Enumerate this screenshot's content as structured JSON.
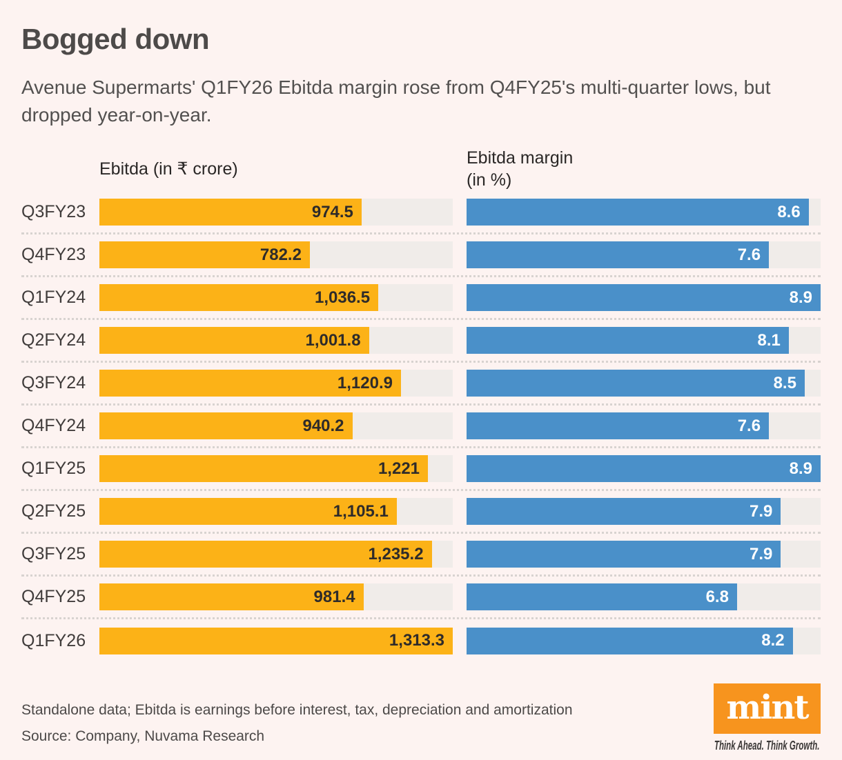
{
  "page": {
    "title": "Bogged down",
    "subtitle": "Avenue Supermarts' Q1FY26 Ebitda margin rose from Q4FY25's multi-quarter lows, but dropped year-on-year.",
    "footnote": "Standalone data; Ebitda is earnings before interest, tax, depreciation and amortization",
    "source": "Source: Company, Nuvama Research"
  },
  "chart_data": {
    "type": "bar",
    "orientation": "horizontal",
    "grid": false,
    "legend_position": "none",
    "categories": [
      "Q3FY23",
      "Q4FY23",
      "Q1FY24",
      "Q2FY24",
      "Q3FY24",
      "Q4FY24",
      "Q1FY25",
      "Q2FY25",
      "Q3FY25",
      "Q4FY25",
      "Q1FY26"
    ],
    "series": [
      {
        "name": "Ebitda (in ₹ crore)",
        "values": [
          974.5,
          782.2,
          1036.5,
          1001.8,
          1120.9,
          940.2,
          1221,
          1105.1,
          1235.2,
          981.4,
          1313.3
        ],
        "labels": [
          "974.5",
          "782.2",
          "1,036.5",
          "1,001.8",
          "1,120.9",
          "940.2",
          "1,221",
          "1,105.1",
          "1,235.2",
          "981.4",
          "1,313.3"
        ],
        "color": "#fcb217",
        "axis_max": 1313.3
      },
      {
        "name": "Ebitda margin (in %)",
        "values": [
          8.6,
          7.6,
          8.9,
          8.1,
          8.5,
          7.6,
          8.9,
          7.9,
          7.9,
          6.8,
          8.2
        ],
        "labels": [
          "8.6",
          "7.6",
          "8.9",
          "8.1",
          "8.5",
          "7.6",
          "8.9",
          "7.9",
          "7.9",
          "6.8",
          "8.2"
        ],
        "color": "#4a90c9",
        "axis_max": 8.9
      }
    ],
    "column_headers": {
      "left": "Ebitda (in ₹ crore)",
      "right_line1": "Ebitda margin",
      "right_line2": "(in %)"
    },
    "track_color": "#f0ece9",
    "background_color": "#fdf3f1"
  },
  "branding": {
    "logo_text": "mint",
    "logo_color": "#f7941e",
    "tagline": "Think Ahead. Think Growth."
  }
}
